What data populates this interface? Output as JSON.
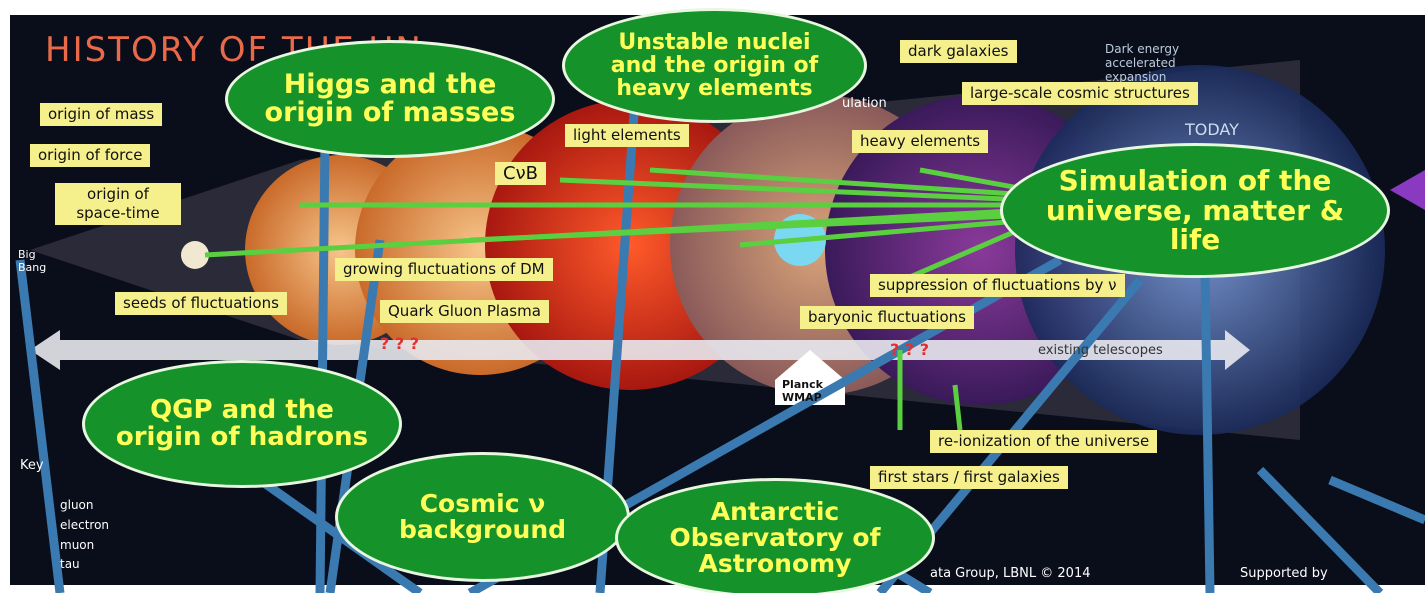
{
  "title": "HISTORY OF THE UN",
  "bubbles": [
    "Higgs and the origin of masses",
    "Unstable nuclei and the origin of heavy elements",
    "Simulation of the universe, matter & life",
    "QGP and the origin of hadrons",
    "Cosmic ν background",
    "Antarctic Observatory of Astronomy"
  ],
  "labels": [
    "origin of mass",
    "origin of force",
    "origin of space-time",
    "seeds of fluctuations",
    "growing fluctuations of DM",
    "Quark Gluon Plasma",
    "light elements",
    "CνB",
    "dark galaxies",
    "large-scale cosmic structures",
    "heavy elements",
    "suppression of fluctuations by ν",
    "baryonic fluctuations",
    "re-ionization of the universe",
    "first stars / first galaxies"
  ],
  "notes": {
    "dark_energy": "Dark energy accelerated expansion",
    "today": "TODAY",
    "partial_simulation": "ulation",
    "big_bang": "Big Bang",
    "unknown_1": "? ? ?",
    "unknown_2": "? ? ?",
    "telescopes": "existing telescopes",
    "planck": "Planck WMAP",
    "key": "Key",
    "credit": "ata Group, LBNL © 2014",
    "supported": "Supported by"
  },
  "legend": [
    "gluon",
    "electron",
    "muon",
    "tau"
  ]
}
